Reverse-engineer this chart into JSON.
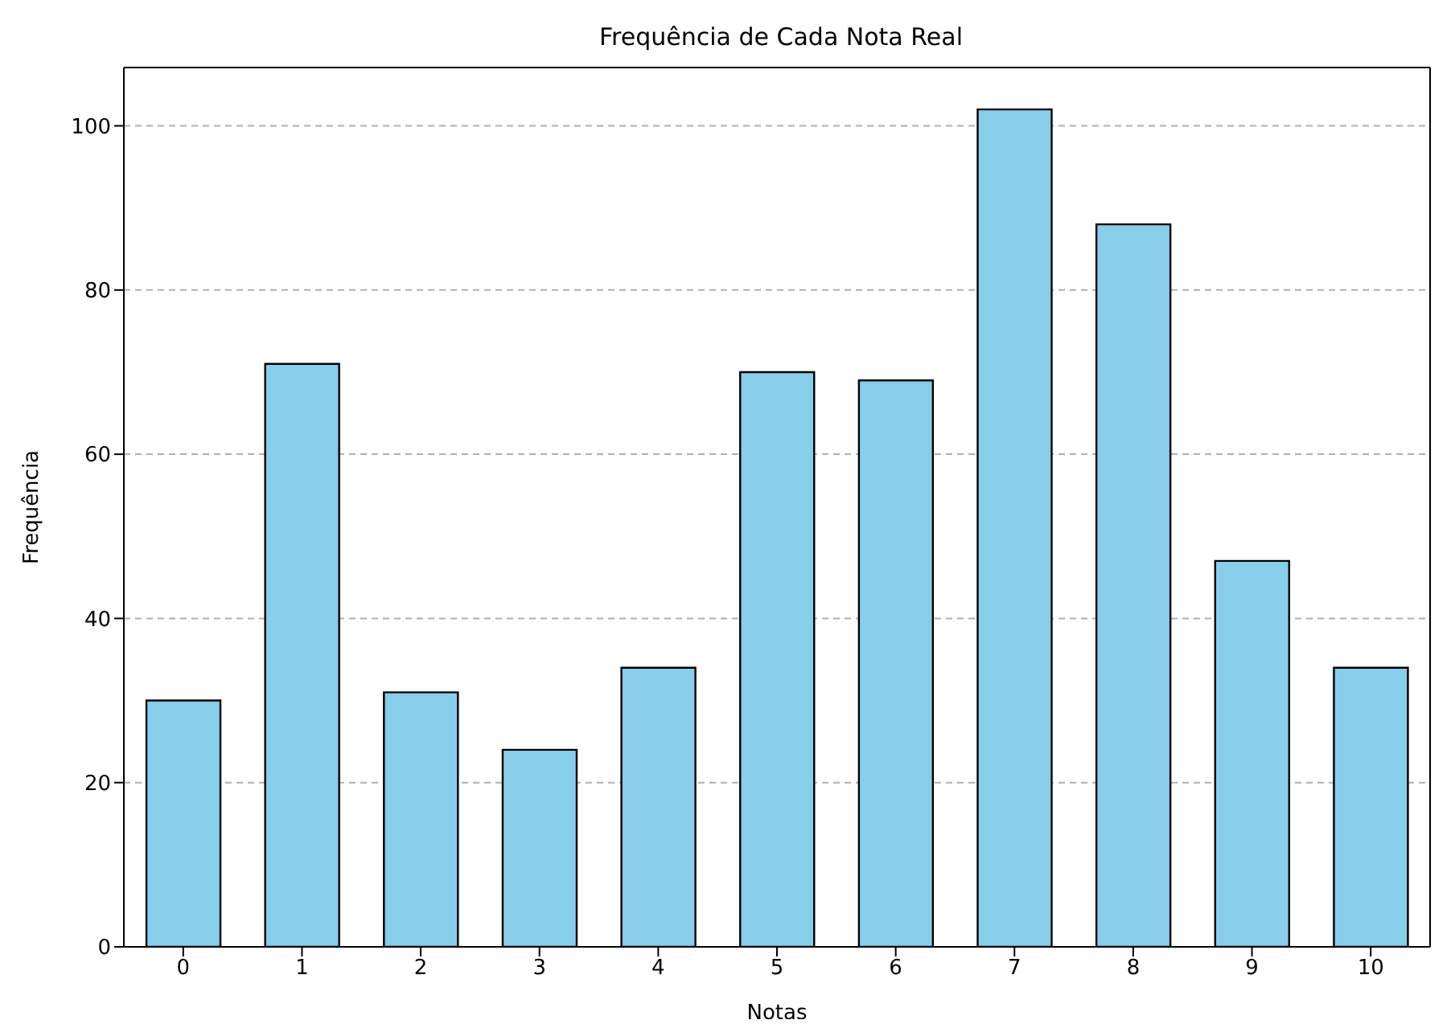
{
  "chart_data": {
    "type": "bar",
    "title": "Frequência de Cada Nota Real",
    "xlabel": "Notas",
    "ylabel": "Frequência",
    "categories": [
      "0",
      "1",
      "2",
      "3",
      "4",
      "5",
      "6",
      "7",
      "8",
      "9",
      "10"
    ],
    "values": [
      30,
      71,
      31,
      24,
      34,
      70,
      69,
      102,
      88,
      47,
      34
    ],
    "color": "#87ceeb",
    "ylim": [
      0,
      107.1
    ],
    "yticks": [
      0,
      20,
      40,
      60,
      80,
      100
    ],
    "grid": "y"
  }
}
